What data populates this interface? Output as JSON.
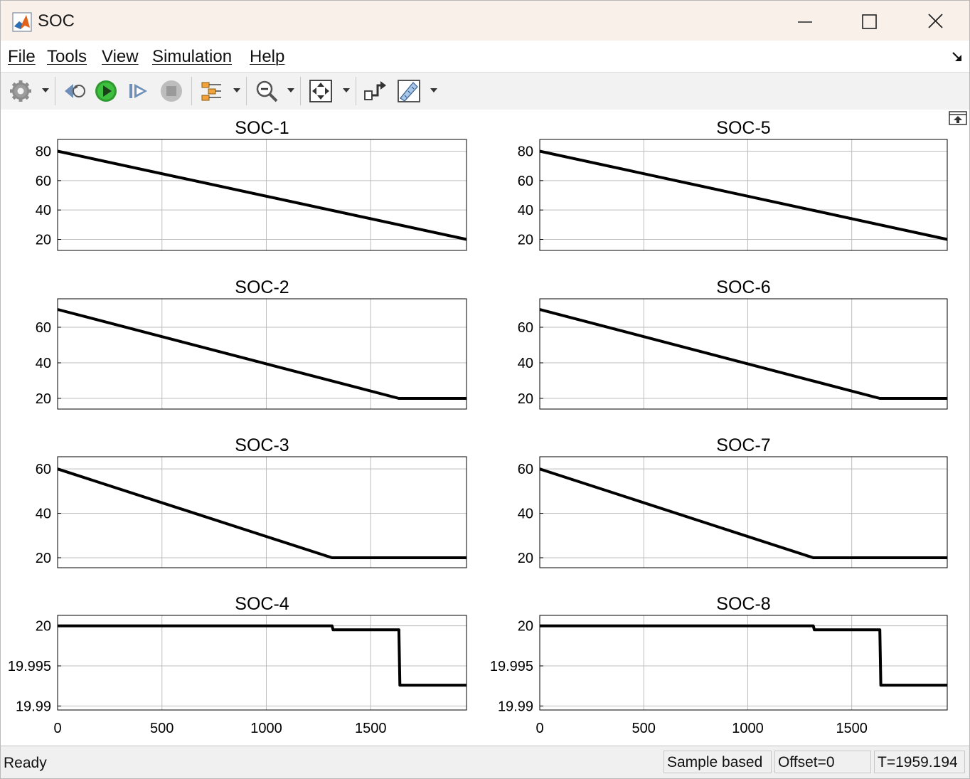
{
  "window": {
    "title": "SOC"
  },
  "menu": [
    "File",
    "Tools",
    "View",
    "Simulation",
    "Help"
  ],
  "toolbar": {
    "buttons": [
      "gear-icon",
      "step-back-icon",
      "run-icon",
      "step-forward-icon",
      "stop-icon",
      "signal-select-icon",
      "zoom-icon",
      "fit-to-view-icon",
      "highlight-block-icon",
      "measurements-icon"
    ]
  },
  "status": {
    "ready": "Ready",
    "sample_mode": "Sample based",
    "offset": "Offset=0",
    "time": "T=1959.194"
  },
  "colors": {
    "trace": "#000000",
    "grid": "#bdbdbd",
    "titlebar": "#f9f1e9",
    "toolbar": "#f2f2f2"
  },
  "chart_data": [
    {
      "type": "line",
      "title": "SOC-1",
      "xlim": [
        0,
        1959.194
      ],
      "yticks": [
        "20",
        "40",
        "60",
        "80"
      ],
      "ylim": [
        12.5,
        88
      ],
      "grid": true,
      "xticks": [
        "500",
        "1000",
        "1500"
      ],
      "x": [
        0,
        1959.194
      ],
      "y": [
        80,
        20
      ]
    },
    {
      "type": "line",
      "title": "SOC-2",
      "xlim": [
        0,
        1959.194
      ],
      "yticks": [
        "20",
        "40",
        "60"
      ],
      "ylim": [
        14,
        76
      ],
      "grid": true,
      "xticks": [
        "500",
        "1000",
        "1500"
      ],
      "x": [
        0,
        1635,
        1959.194
      ],
      "y": [
        70,
        20,
        20
      ]
    },
    {
      "type": "line",
      "title": "SOC-3",
      "xlim": [
        0,
        1959.194
      ],
      "yticks": [
        "20",
        "40",
        "60"
      ],
      "ylim": [
        15.5,
        65.5
      ],
      "grid": true,
      "xticks": [
        "500",
        "1000",
        "1500"
      ],
      "x": [
        0,
        1315,
        1959.194
      ],
      "y": [
        60,
        20,
        20
      ]
    },
    {
      "type": "line",
      "title": "SOC-4",
      "xlim": [
        0,
        1959.194
      ],
      "yticks": [
        "19.99",
        "19.995",
        "20"
      ],
      "ylim": [
        19.9895,
        20.0013
      ],
      "grid": true,
      "xticks": [
        "500",
        "1000",
        "1500"
      ],
      "xtick_labels": [
        "0",
        "500",
        "1000",
        "1500"
      ],
      "x": [
        0,
        1315,
        1320,
        1635,
        1640,
        1959.194
      ],
      "y": [
        20,
        20,
        19.9995,
        19.9995,
        19.9926,
        19.9926
      ]
    },
    {
      "type": "line",
      "title": "SOC-5",
      "xlim": [
        0,
        1959.194
      ],
      "yticks": [
        "20",
        "40",
        "60",
        "80"
      ],
      "ylim": [
        12.5,
        88
      ],
      "grid": true,
      "xticks": [
        "500",
        "1000",
        "1500"
      ],
      "x": [
        0,
        1959.194
      ],
      "y": [
        80,
        20
      ]
    },
    {
      "type": "line",
      "title": "SOC-6",
      "xlim": [
        0,
        1959.194
      ],
      "yticks": [
        "20",
        "40",
        "60"
      ],
      "ylim": [
        14,
        76
      ],
      "grid": true,
      "xticks": [
        "500",
        "1000",
        "1500"
      ],
      "x": [
        0,
        1635,
        1959.194
      ],
      "y": [
        70,
        20,
        20
      ]
    },
    {
      "type": "line",
      "title": "SOC-7",
      "xlim": [
        0,
        1959.194
      ],
      "yticks": [
        "20",
        "40",
        "60"
      ],
      "ylim": [
        15.5,
        65.5
      ],
      "grid": true,
      "xticks": [
        "500",
        "1000",
        "1500"
      ],
      "x": [
        0,
        1315,
        1959.194
      ],
      "y": [
        60,
        20,
        20
      ]
    },
    {
      "type": "line",
      "title": "SOC-8",
      "xlim": [
        0,
        1959.194
      ],
      "yticks": [
        "19.99",
        "19.995",
        "20"
      ],
      "ylim": [
        19.9895,
        20.0013
      ],
      "grid": true,
      "xticks": [
        "500",
        "1000",
        "1500"
      ],
      "xtick_labels": [
        "0",
        "500",
        "1000",
        "1500"
      ],
      "x": [
        0,
        1315,
        1320,
        1635,
        1640,
        1959.194
      ],
      "y": [
        20,
        20,
        19.9995,
        19.9995,
        19.9926,
        19.9926
      ]
    }
  ]
}
